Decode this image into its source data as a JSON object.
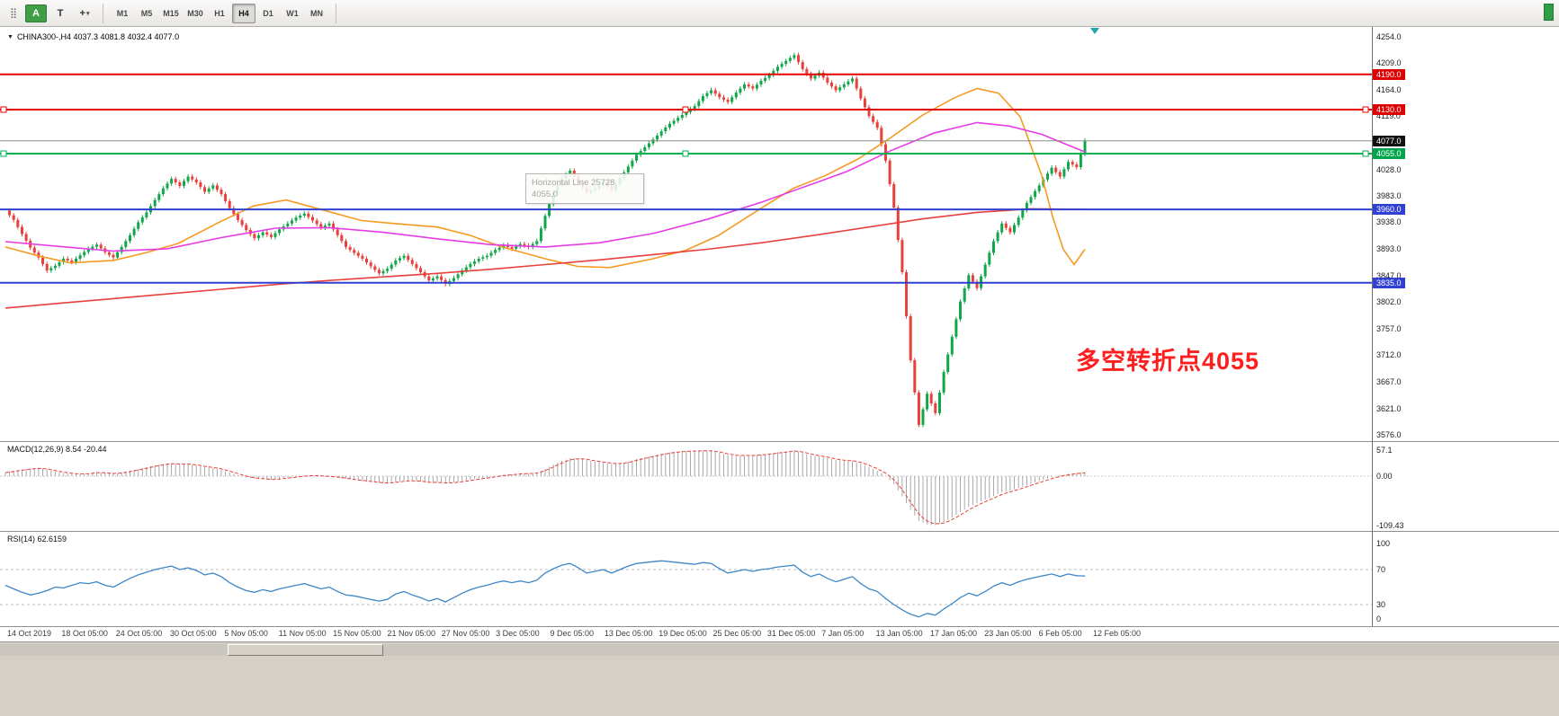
{
  "toolbar": {
    "tool_a_label": "A",
    "tool_t_label": "T",
    "crosshair_glyph": "+",
    "timeframes": [
      "M1",
      "M5",
      "M15",
      "M30",
      "H1",
      "H4",
      "D1",
      "W1",
      "MN"
    ],
    "active_timeframe": "H4"
  },
  "chart": {
    "header": "CHINA300-,H4  4037.3 4081.8 4032.4 4077.0",
    "tooltip": {
      "line1": "Horizontal Line 25728",
      "line2": "4055.0"
    },
    "annotation": "多空转折点4055"
  },
  "chart_data": {
    "type": "candlestick",
    "symbol": "CHINA300-",
    "timeframe": "H4",
    "ylim": [
      3576,
      4254
    ],
    "ohlc_current": {
      "open": 4037.3,
      "high": 4081.8,
      "low": 4032.4,
      "close": 4077.0
    },
    "up_color": "#10a74a",
    "down_color": "#e8403a",
    "closes": [
      3958,
      3942,
      3918,
      3895,
      3878,
      3856,
      3864,
      3876,
      3870,
      3882,
      3893,
      3900,
      3887,
      3878,
      3896,
      3916,
      3938,
      3955,
      3976,
      3996,
      4012,
      4000,
      4016,
      4006,
      3990,
      4001,
      3986,
      3962,
      3942,
      3925,
      3911,
      3921,
      3913,
      3926,
      3936,
      3946,
      3953,
      3941,
      3929,
      3936,
      3916,
      3896,
      3886,
      3876,
      3863,
      3851,
      3859,
      3873,
      3881,
      3867,
      3853,
      3839,
      3846,
      3833,
      3843,
      3856,
      3867,
      3876,
      3881,
      3891,
      3899,
      3893,
      3901,
      3896,
      3906,
      3949,
      3989,
      4013,
      4026,
      4006,
      3989,
      3996,
      4006,
      3993,
      4013,
      4033,
      4053,
      4066,
      4079,
      4093,
      4106,
      4116,
      4126,
      4136,
      4153,
      4163,
      4151,
      4143,
      4159,
      4173,
      4166,
      4179,
      4189,
      4203,
      4213,
      4223,
      4199,
      4183,
      4193,
      4176,
      4163,
      4173,
      4183,
      4149,
      4119,
      4099,
      4043,
      3963,
      3853,
      3703,
      3593,
      3646,
      3613,
      3683,
      3743,
      3803,
      3848,
      3826,
      3866,
      3906,
      3936,
      3921,
      3946,
      3971,
      3991,
      4011,
      4031,
      4016,
      4041,
      4032,
      4077
    ],
    "moving_averages": [
      {
        "name": "ma-fast-orange",
        "color": "#f59a23",
        "points": [
          [
            0,
            3896
          ],
          [
            0.03,
            3881
          ],
          [
            0.06,
            3869
          ],
          [
            0.1,
            3873
          ],
          [
            0.13,
            3886
          ],
          [
            0.16,
            3902
          ],
          [
            0.2,
            3940
          ],
          [
            0.23,
            3966
          ],
          [
            0.26,
            3976
          ],
          [
            0.3,
            3956
          ],
          [
            0.33,
            3941
          ],
          [
            0.36,
            3936
          ],
          [
            0.4,
            3930
          ],
          [
            0.43,
            3916
          ],
          [
            0.46,
            3896
          ],
          [
            0.5,
            3876
          ],
          [
            0.53,
            3863
          ],
          [
            0.56,
            3861
          ],
          [
            0.6,
            3876
          ],
          [
            0.63,
            3890
          ],
          [
            0.66,
            3915
          ],
          [
            0.7,
            3962
          ],
          [
            0.73,
            3996
          ],
          [
            0.76,
            4018
          ],
          [
            0.79,
            4046
          ],
          [
            0.82,
            4082
          ],
          [
            0.85,
            4121
          ],
          [
            0.88,
            4151
          ],
          [
            0.9,
            4166
          ],
          [
            0.92,
            4158
          ],
          [
            0.94,
            4118
          ],
          [
            0.96,
            4018
          ],
          [
            0.97,
            3948
          ],
          [
            0.98,
            3892
          ],
          [
            0.99,
            3866
          ],
          [
            1,
            3892
          ]
        ]
      },
      {
        "name": "ma-mid-magenta",
        "color": "#e53ce5",
        "points": [
          [
            0,
            3905
          ],
          [
            0.05,
            3897
          ],
          [
            0.1,
            3889
          ],
          [
            0.15,
            3893
          ],
          [
            0.2,
            3912
          ],
          [
            0.25,
            3928
          ],
          [
            0.3,
            3929
          ],
          [
            0.35,
            3921
          ],
          [
            0.4,
            3910
          ],
          [
            0.45,
            3900
          ],
          [
            0.5,
            3896
          ],
          [
            0.55,
            3903
          ],
          [
            0.6,
            3919
          ],
          [
            0.65,
            3943
          ],
          [
            0.7,
            3972
          ],
          [
            0.75,
            4005
          ],
          [
            0.78,
            4025
          ],
          [
            0.82,
            4060
          ],
          [
            0.86,
            4090
          ],
          [
            0.9,
            4108
          ],
          [
            0.93,
            4102
          ],
          [
            0.96,
            4088
          ],
          [
            1,
            4058
          ]
        ]
      },
      {
        "name": "ma-slow-red",
        "color": "#e8413c",
        "points": [
          [
            0,
            3792
          ],
          [
            0.05,
            3800
          ],
          [
            0.1,
            3808
          ],
          [
            0.15,
            3816
          ],
          [
            0.2,
            3824
          ],
          [
            0.25,
            3832
          ],
          [
            0.3,
            3839
          ],
          [
            0.35,
            3845
          ],
          [
            0.4,
            3851
          ],
          [
            0.45,
            3858
          ],
          [
            0.5,
            3866
          ],
          [
            0.55,
            3874
          ],
          [
            0.6,
            3883
          ],
          [
            0.65,
            3892
          ],
          [
            0.7,
            3903
          ],
          [
            0.75,
            3916
          ],
          [
            0.8,
            3930
          ],
          [
            0.85,
            3944
          ],
          [
            0.9,
            3955
          ],
          [
            0.95,
            3961
          ],
          [
            1,
            3960
          ]
        ]
      }
    ],
    "levels": [
      {
        "price": 4190.0,
        "label": "4190.0",
        "color": "#e60000",
        "label_bg": "#dd0000",
        "width": 2,
        "handles": false
      },
      {
        "price": 4130.0,
        "label": "4130.0",
        "color": "#e60000",
        "label_bg": "#dd0000",
        "width": 2,
        "handles": true
      },
      {
        "price": 4077.0,
        "label": "4077.0",
        "color": "#8a8a8a",
        "label_bg": "#111111",
        "width": 1,
        "handles": false
      },
      {
        "price": 4055.0,
        "label": "4055.0",
        "color": "#00b050",
        "label_bg": "#00a44b",
        "width": 2,
        "handles": true
      },
      {
        "price": 3960.0,
        "label": "3960.0",
        "color": "#3040d0",
        "label_bg": "#3040d0",
        "width": 2,
        "handles": false
      },
      {
        "price": 3835.0,
        "label": "3835.0",
        "color": "#3040d0",
        "label_bg": "#3040d0",
        "width": 2,
        "handles": false
      }
    ],
    "y_ticks": [
      4254.0,
      4209.0,
      4164.0,
      4119.0,
      4028.0,
      3983.0,
      3938.0,
      3893.0,
      3847.0,
      3802.0,
      3757.0,
      3712.0,
      3667.0,
      3621.0,
      3576.0
    ],
    "macd": {
      "label": "MACD(12,26,9) 8.54 -20.44",
      "axis": [
        {
          "v": 57.1,
          "t": "57.1"
        },
        {
          "v": 0,
          "t": "0.00"
        },
        {
          "v": -109.43,
          "t": "-109.43"
        }
      ],
      "values": [
        8,
        12,
        15,
        17,
        18,
        15,
        10,
        7,
        5,
        4,
        6,
        9,
        7,
        5,
        8,
        12,
        16,
        20,
        24,
        27,
        29,
        26,
        27,
        24,
        20,
        18,
        14,
        8,
        2,
        -3,
        -6,
        -7,
        -8,
        -6,
        -3,
        -1,
        1,
        2,
        0,
        -1,
        -3,
        -6,
        -9,
        -11,
        -13,
        -15,
        -16,
        -13,
        -10,
        -10,
        -12,
        -15,
        -14,
        -16,
        -14,
        -11,
        -8,
        -5,
        -3,
        0,
        3,
        4,
        6,
        6,
        8,
        16,
        26,
        34,
        40,
        40,
        36,
        32,
        30,
        27,
        28,
        32,
        38,
        42,
        46,
        50,
        53,
        55,
        56,
        56,
        57,
        56,
        52,
        47,
        45,
        46,
        46,
        48,
        50,
        53,
        55,
        57,
        52,
        46,
        44,
        40,
        36,
        34,
        34,
        28,
        20,
        12,
        0,
        -18,
        -45,
        -75,
        -100,
        -108,
        -109,
        -102,
        -92,
        -80,
        -68,
        -60,
        -52,
        -44,
        -36,
        -32,
        -26,
        -20,
        -14,
        -8,
        -2,
        2,
        5,
        7,
        8.54
      ]
    },
    "rsi": {
      "label": "RSI(14) 62.6159",
      "axis": [
        {
          "v": 100,
          "t": "100"
        },
        {
          "v": 70,
          "t": "70"
        },
        {
          "v": 30,
          "t": "30"
        },
        {
          "v": 0,
          "t": "0"
        }
      ],
      "levels": [
        70,
        30
      ],
      "values": [
        52,
        48,
        44,
        41,
        43,
        46,
        50,
        49,
        52,
        55,
        54,
        56,
        52,
        50,
        55,
        60,
        64,
        67,
        70,
        72,
        74,
        70,
        72,
        69,
        64,
        66,
        62,
        55,
        50,
        46,
        44,
        47,
        45,
        48,
        50,
        52,
        54,
        51,
        48,
        50,
        45,
        41,
        40,
        38,
        36,
        34,
        36,
        42,
        45,
        41,
        38,
        34,
        37,
        33,
        38,
        43,
        47,
        50,
        52,
        55,
        57,
        55,
        57,
        55,
        58,
        66,
        71,
        75,
        77,
        72,
        66,
        68,
        70,
        66,
        70,
        74,
        77,
        78,
        79,
        80,
        79,
        78,
        77,
        76,
        78,
        77,
        71,
        66,
        68,
        70,
        68,
        70,
        71,
        73,
        74,
        75,
        67,
        62,
        65,
        60,
        56,
        59,
        62,
        54,
        48,
        45,
        37,
        30,
        24,
        19,
        16,
        20,
        18,
        25,
        31,
        38,
        43,
        40,
        45,
        51,
        55,
        52,
        56,
        59,
        61,
        63,
        65,
        62,
        65,
        63,
        62.6
      ]
    },
    "x_labels": [
      "14 Oct 2019",
      "18 Oct 05:00",
      "24 Oct 05:00",
      "30 Oct 05:00",
      "5 Nov 05:00",
      "11 Nov 05:00",
      "15 Nov 05:00",
      "21 Nov 05:00",
      "27 Nov 05:00",
      "3 Dec 05:00",
      "9 Dec 05:00",
      "13 Dec 05:00",
      "19 Dec 05:00",
      "25 Dec 05:00",
      "31 Dec 05:00",
      "7 Jan 05:00",
      "13 Jan 05:00",
      "17 Jan 05:00",
      "23 Jan 05:00",
      "6 Feb 05:00",
      "12 Feb 05:00"
    ]
  }
}
